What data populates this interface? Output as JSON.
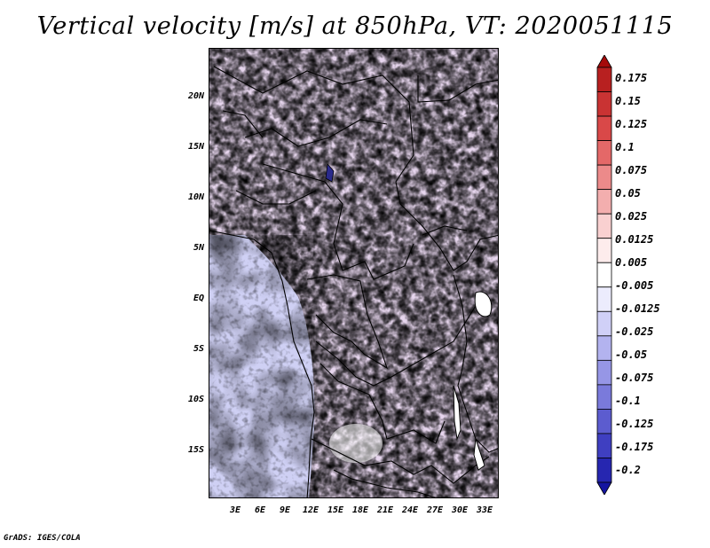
{
  "title": "Vertical velocity [m/s] at 850hPa, VT: 2020051115",
  "footer": "GrADS: IGES/COLA",
  "map": {
    "lat_ticks": [
      "20N",
      "15N",
      "10N",
      "5N",
      "EQ",
      "5S",
      "10S",
      "15S"
    ],
    "lon_ticks": [
      "3E",
      "6E",
      "9E",
      "12E",
      "15E",
      "18E",
      "21E",
      "24E",
      "27E",
      "30E",
      "33E"
    ]
  },
  "colorbar": {
    "labels": [
      "0.175",
      "0.15",
      "0.125",
      "0.1",
      "0.075",
      "0.05",
      "0.025",
      "0.0125",
      "0.005",
      "-0.005",
      "-0.0125",
      "-0.025",
      "-0.05",
      "-0.075",
      "-0.1",
      "-0.125",
      "-0.175",
      "-0.2"
    ],
    "colors": [
      "#a50a0a",
      "#b82020",
      "#c93333",
      "#d94848",
      "#e46868",
      "#ec8a8a",
      "#f3aeae",
      "#f9d0d0",
      "#fdecec",
      "#ffffff",
      "#ececfd",
      "#d0d0f7",
      "#b3b3ef",
      "#9696e6",
      "#7a7adb",
      "#5c5ccf",
      "#3f3fc1",
      "#2626b0",
      "#1414a0"
    ]
  }
}
